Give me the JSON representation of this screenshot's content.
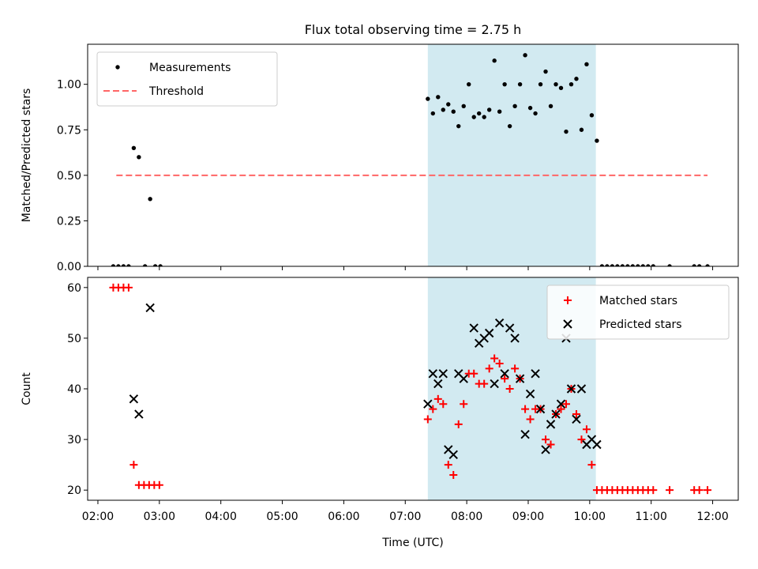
{
  "figure": {
    "title": "Flux total observing time = 2.75 h"
  },
  "chart_data": [
    {
      "type": "scatter",
      "ylabel": "Matched/Predicted stars",
      "xlim": [
        "01:50",
        "12:25"
      ],
      "ylim": [
        0,
        1.22
      ],
      "yticks": [
        "0.00",
        "0.25",
        "0.50",
        "0.75",
        "1.00"
      ],
      "shaded_span": {
        "x0": "07:22",
        "x1": "10:06",
        "color": "#add8e6"
      },
      "legend_position": "upper left",
      "series": [
        {
          "name": "Measurements",
          "marker": "dot",
          "color": "#000000",
          "points": [
            [
              "02:15",
              0
            ],
            [
              "02:20",
              0
            ],
            [
              "02:25",
              0
            ],
            [
              "02:30",
              0
            ],
            [
              "02:35",
              0.65
            ],
            [
              "02:40",
              0.6
            ],
            [
              "02:46",
              0
            ],
            [
              "02:51",
              0.37
            ],
            [
              "02:56",
              0
            ],
            [
              "03:01",
              0
            ],
            [
              "07:22",
              0.92
            ],
            [
              "07:27",
              0.84
            ],
            [
              "07:32",
              0.93
            ],
            [
              "07:37",
              0.86
            ],
            [
              "07:42",
              0.89
            ],
            [
              "07:47",
              0.85
            ],
            [
              "07:52",
              0.77
            ],
            [
              "07:57",
              0.88
            ],
            [
              "08:02",
              1.0
            ],
            [
              "08:07",
              0.82
            ],
            [
              "08:12",
              0.84
            ],
            [
              "08:17",
              0.82
            ],
            [
              "08:22",
              0.86
            ],
            [
              "08:27",
              1.13
            ],
            [
              "08:32",
              0.85
            ],
            [
              "08:37",
              1.0
            ],
            [
              "08:42",
              0.77
            ],
            [
              "08:47",
              0.88
            ],
            [
              "08:52",
              1.0
            ],
            [
              "08:57",
              1.16
            ],
            [
              "09:02",
              0.87
            ],
            [
              "09:07",
              0.84
            ],
            [
              "09:12",
              1.0
            ],
            [
              "09:17",
              1.07
            ],
            [
              "09:22",
              0.88
            ],
            [
              "09:27",
              1.0
            ],
            [
              "09:32",
              0.98
            ],
            [
              "09:37",
              0.74
            ],
            [
              "09:42",
              1.0
            ],
            [
              "09:47",
              1.03
            ],
            [
              "09:52",
              0.75
            ],
            [
              "09:57",
              1.11
            ],
            [
              "10:02",
              0.83
            ],
            [
              "10:07",
              0.69
            ],
            [
              "10:12",
              0
            ],
            [
              "10:17",
              0
            ],
            [
              "10:22",
              0
            ],
            [
              "10:27",
              0
            ],
            [
              "10:32",
              0
            ],
            [
              "10:37",
              0
            ],
            [
              "10:42",
              0
            ],
            [
              "10:47",
              0
            ],
            [
              "10:52",
              0
            ],
            [
              "10:57",
              0
            ],
            [
              "11:02",
              0
            ],
            [
              "11:18",
              0
            ],
            [
              "11:42",
              0
            ],
            [
              "11:47",
              0
            ],
            [
              "11:55",
              0
            ]
          ]
        },
        {
          "name": "Threshold",
          "style": "dashed-line",
          "color": "#ff6666",
          "points": [
            [
              "02:18",
              0.5
            ],
            [
              "11:55",
              0.5
            ]
          ]
        }
      ]
    },
    {
      "type": "scatter",
      "xlabel": "Time (UTC)",
      "ylabel": "Count",
      "xlim": [
        "01:50",
        "12:25"
      ],
      "ylim": [
        18,
        62
      ],
      "yticks": [
        "20",
        "30",
        "40",
        "50",
        "60"
      ],
      "xticks": [
        "02:00",
        "03:00",
        "04:00",
        "05:00",
        "06:00",
        "07:00",
        "08:00",
        "09:00",
        "10:00",
        "11:00",
        "12:00"
      ],
      "shaded_span": {
        "x0": "07:22",
        "x1": "10:06",
        "color": "#add8e6"
      },
      "legend_position": "upper right",
      "series": [
        {
          "name": "Matched stars",
          "marker": "plus",
          "color": "#ff0000",
          "points": [
            [
              "02:15",
              60
            ],
            [
              "02:20",
              60
            ],
            [
              "02:25",
              60
            ],
            [
              "02:30",
              60
            ],
            [
              "02:35",
              25
            ],
            [
              "02:40",
              21
            ],
            [
              "02:45",
              21
            ],
            [
              "02:50",
              21
            ],
            [
              "02:55",
              21
            ],
            [
              "03:00",
              21
            ],
            [
              "07:22",
              34
            ],
            [
              "07:27",
              36
            ],
            [
              "07:32",
              38
            ],
            [
              "07:37",
              37
            ],
            [
              "07:42",
              25
            ],
            [
              "07:47",
              23
            ],
            [
              "07:52",
              33
            ],
            [
              "07:57",
              37
            ],
            [
              "08:02",
              43
            ],
            [
              "08:07",
              43
            ],
            [
              "08:12",
              41
            ],
            [
              "08:17",
              41
            ],
            [
              "08:22",
              44
            ],
            [
              "08:27",
              46
            ],
            [
              "08:32",
              45
            ],
            [
              "08:37",
              42
            ],
            [
              "08:42",
              40
            ],
            [
              "08:47",
              44
            ],
            [
              "08:52",
              42
            ],
            [
              "08:57",
              36
            ],
            [
              "09:02",
              34
            ],
            [
              "09:07",
              36
            ],
            [
              "09:12",
              36
            ],
            [
              "09:17",
              30
            ],
            [
              "09:22",
              29
            ],
            [
              "09:27",
              35
            ],
            [
              "09:32",
              36
            ],
            [
              "09:37",
              37
            ],
            [
              "09:42",
              40
            ],
            [
              "09:47",
              35
            ],
            [
              "09:52",
              30
            ],
            [
              "09:57",
              32
            ],
            [
              "10:02",
              25
            ],
            [
              "10:07",
              20
            ],
            [
              "10:12",
              20
            ],
            [
              "10:17",
              20
            ],
            [
              "10:22",
              20
            ],
            [
              "10:27",
              20
            ],
            [
              "10:32",
              20
            ],
            [
              "10:37",
              20
            ],
            [
              "10:42",
              20
            ],
            [
              "10:47",
              20
            ],
            [
              "10:52",
              20
            ],
            [
              "10:57",
              20
            ],
            [
              "11:02",
              20
            ],
            [
              "11:18",
              20
            ],
            [
              "11:42",
              20
            ],
            [
              "11:47",
              20
            ],
            [
              "11:55",
              20
            ]
          ]
        },
        {
          "name": "Predicted stars",
          "marker": "x",
          "color": "#000000",
          "points": [
            [
              "02:51",
              56
            ],
            [
              "02:35",
              38
            ],
            [
              "02:40",
              35
            ],
            [
              "07:22",
              37
            ],
            [
              "07:27",
              43
            ],
            [
              "07:32",
              41
            ],
            [
              "07:37",
              43
            ],
            [
              "07:42",
              28
            ],
            [
              "07:47",
              27
            ],
            [
              "07:52",
              43
            ],
            [
              "07:57",
              42
            ],
            [
              "08:07",
              52
            ],
            [
              "08:12",
              49
            ],
            [
              "08:17",
              50
            ],
            [
              "08:22",
              51
            ],
            [
              "08:27",
              41
            ],
            [
              "08:32",
              53
            ],
            [
              "08:37",
              43
            ],
            [
              "08:42",
              52
            ],
            [
              "08:47",
              50
            ],
            [
              "08:52",
              42
            ],
            [
              "08:57",
              31
            ],
            [
              "09:02",
              39
            ],
            [
              "09:07",
              43
            ],
            [
              "09:12",
              36
            ],
            [
              "09:17",
              28
            ],
            [
              "09:22",
              33
            ],
            [
              "09:27",
              35
            ],
            [
              "09:32",
              37
            ],
            [
              "09:37",
              50
            ],
            [
              "09:42",
              40
            ],
            [
              "09:47",
              34
            ],
            [
              "09:52",
              40
            ],
            [
              "09:57",
              29
            ],
            [
              "10:02",
              30
            ],
            [
              "10:07",
              29
            ]
          ]
        }
      ]
    }
  ]
}
